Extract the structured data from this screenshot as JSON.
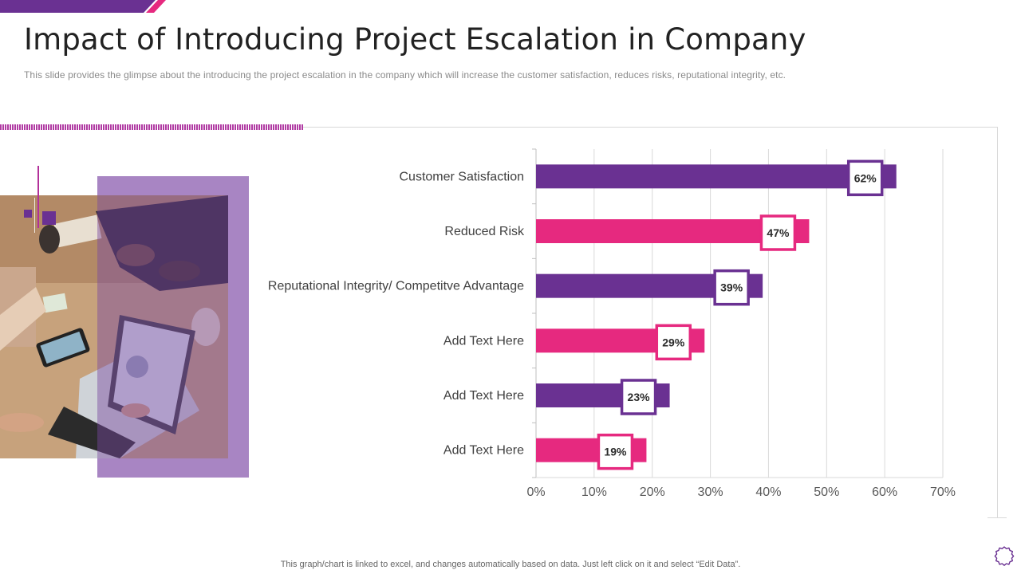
{
  "slide": {
    "title": "Impact of Introducing Project Escalation in Company",
    "subtitle": "This slide provides  the glimpse about the introducing the project escalation in the company which will increase the customer satisfaction, reduces risks, reputational  integrity, etc.",
    "footer_note": "This graph/chart is linked to excel,  and changes automatically based on data. Just left click on it and select “Edit Data”."
  },
  "colors": {
    "purple": "#6a3192",
    "pink": "#e6297f",
    "accent_magenta": "#b13ba3",
    "photo_panel": "#a885c3"
  },
  "icons": {
    "settings": "gear-icon"
  },
  "chart_data": {
    "type": "bar",
    "orientation": "horizontal",
    "categories": [
      "Customer Satisfaction",
      "Reduced Risk",
      "Reputational Integrity/ Competitve Advantage",
      "Add Text Here",
      "Add Text Here",
      "Add Text Here"
    ],
    "values": [
      62,
      47,
      39,
      29,
      23,
      19
    ],
    "data_labels": [
      "62%",
      "47%",
      "39%",
      "29%",
      "23%",
      "19%"
    ],
    "bar_colors": [
      "#6a3192",
      "#e6297f",
      "#6a3192",
      "#e6297f",
      "#6a3192",
      "#e6297f"
    ],
    "x_ticks": [
      "0%",
      "10%",
      "20%",
      "30%",
      "40%",
      "50%",
      "60%",
      "70%"
    ],
    "xlim": [
      0,
      70
    ],
    "grid": "vertical",
    "legend": "none"
  }
}
